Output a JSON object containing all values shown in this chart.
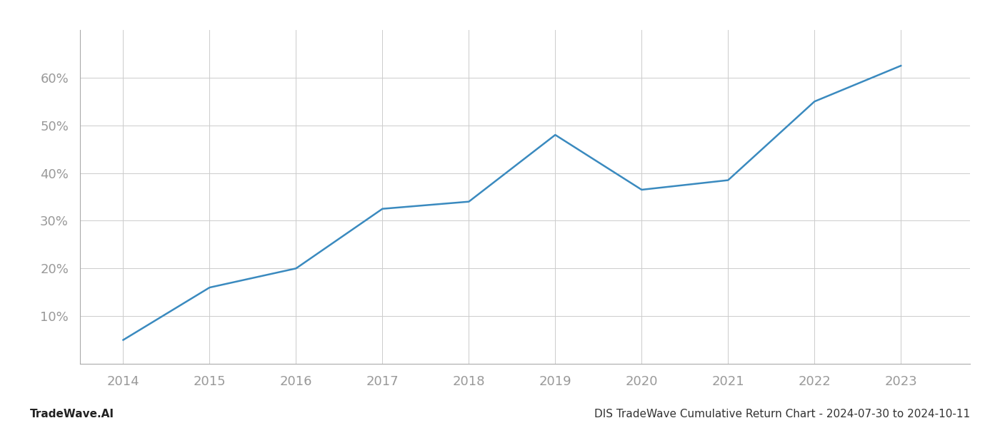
{
  "x_years": [
    2014,
    2015,
    2016,
    2017,
    2018,
    2019,
    2020,
    2021,
    2022,
    2023
  ],
  "y_values": [
    5.0,
    16.0,
    20.0,
    32.5,
    34.0,
    48.0,
    36.5,
    38.5,
    55.0,
    62.5
  ],
  "line_color": "#3a8abf",
  "line_width": 1.8,
  "bg_color": "#ffffff",
  "grid_color": "#cccccc",
  "tick_label_color": "#999999",
  "title_text": "DIS TradeWave Cumulative Return Chart - 2024-07-30 to 2024-10-11",
  "footer_left": "TradeWave.AI",
  "ylabel_ticks": [
    10,
    20,
    30,
    40,
    50,
    60
  ],
  "xlim": [
    2013.5,
    2023.8
  ],
  "ylim": [
    0,
    70
  ],
  "title_fontsize": 11,
  "footer_fontsize": 11,
  "tick_fontsize": 13
}
